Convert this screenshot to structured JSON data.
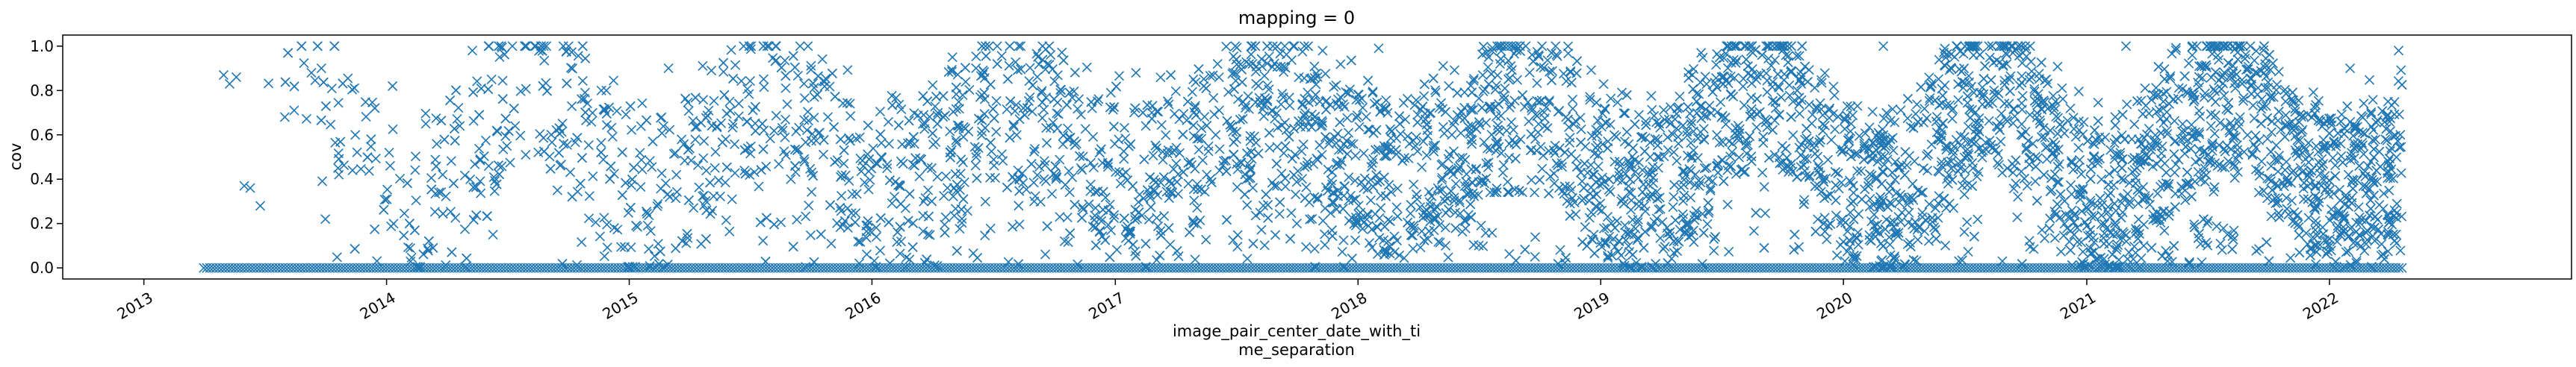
{
  "chart_data": {
    "type": "scatter",
    "title": "mapping = 0",
    "xlabel_lines": [
      "image_pair_center_date_with_ti",
      "me_separation"
    ],
    "ylabel": "cov",
    "marker": "x",
    "color": "#1f77b4",
    "x_range": [
      "2012-09-01",
      "2022-12-31"
    ],
    "ylim": [
      -0.05,
      1.05
    ],
    "x_ticks": [
      "2013",
      "2014",
      "2015",
      "2016",
      "2017",
      "2018",
      "2019",
      "2020",
      "2021",
      "2022"
    ],
    "y_ticks": [
      "0.0",
      "0.2",
      "0.4",
      "0.6",
      "0.8",
      "1.0"
    ],
    "grid": false,
    "series": [
      {
        "x_start": "2013-04-01",
        "x_end": "2022-04-20",
        "zero_baseline": "cov = 0.0 for a dense run of pairs from 2013-04 through 2022-04",
        "points": [
          [
            "2013-05-01",
            0.87
          ],
          [
            "2013-05-10",
            0.83
          ],
          [
            "2013-05-20",
            0.86
          ],
          [
            "2013-06-01",
            0.37
          ],
          [
            "2013-06-10",
            0.36
          ],
          [
            "2013-06-25",
            0.28
          ],
          [
            "2013-08-01",
            0.68
          ],
          [
            "2013-08-15",
            0.71
          ],
          [
            "2013-09-10",
            0.88
          ],
          [
            "2013-09-25",
            0.9
          ],
          [
            "2013-10-01",
            0.22
          ],
          [
            "2013-10-20",
            0.45
          ],
          [
            "2013-11-15",
            0.6
          ],
          [
            "2014-01-10",
            0.82
          ],
          [
            "2014-03-01",
            0.65
          ],
          [
            "2014-05-10",
            0.98
          ],
          [
            "2014-07-01",
            0.55
          ],
          [
            "2014-09-15",
            0.35
          ],
          [
            "2014-11-20",
            0.8
          ],
          [
            "2015-03-01",
            0.9
          ],
          [
            "2015-06-01",
            0.75
          ],
          [
            "2015-09-01",
            0.4
          ],
          [
            "2016-01-15",
            0.5
          ],
          [
            "2016-05-01",
            0.95
          ],
          [
            "2016-09-01",
            0.3
          ],
          [
            "2017-02-01",
            0.88
          ],
          [
            "2017-06-01",
            0.6
          ],
          [
            "2017-10-01",
            0.2
          ],
          [
            "2018-02-01",
            0.99
          ],
          [
            "2018-06-01",
            0.45
          ],
          [
            "2018-10-01",
            0.75
          ],
          [
            "2019-02-01",
            0.3
          ],
          [
            "2019-06-01",
            0.97
          ],
          [
            "2019-10-01",
            0.55
          ],
          [
            "2020-03-01",
            1.0
          ],
          [
            "2020-07-01",
            0.4
          ],
          [
            "2020-11-01",
            0.85
          ],
          [
            "2021-03-01",
            1.0
          ],
          [
            "2021-07-01",
            0.2
          ],
          [
            "2021-11-01",
            0.65
          ],
          [
            "2022-02-01",
            0.9
          ],
          [
            "2022-04-15",
            0.98
          ]
        ]
      }
    ]
  }
}
